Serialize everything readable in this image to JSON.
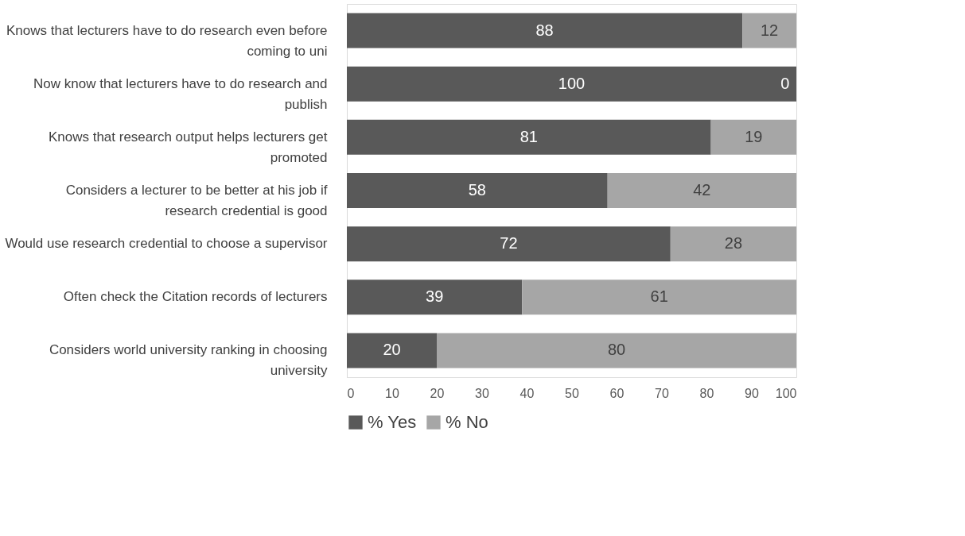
{
  "chart_data": {
    "type": "bar",
    "orientation": "horizontal",
    "stacked": true,
    "data_labels": true,
    "legend": "bottom",
    "grid": false,
    "categories": [
      "Knows that lecturers have to do research even before coming to uni",
      "Now know that lecturers have to do research and publish",
      "Knows that research output helps lecturers get promoted",
      "Considers a lecturer to be better at his job if research credential is good",
      "Would use research credential to choose a supervisor",
      "Often check the Citation records of lecturers",
      "Considers world university ranking in choosing university"
    ],
    "series": [
      {
        "name": "% Yes",
        "color": "#595959",
        "values": [
          88,
          100,
          81,
          58,
          72,
          39,
          20
        ]
      },
      {
        "name": "% No",
        "color": "#a6a6a6",
        "values": [
          12,
          0,
          19,
          42,
          28,
          61,
          80
        ]
      }
    ],
    "xlim": [
      0,
      100
    ],
    "xticks": [
      0,
      10,
      20,
      30,
      40,
      50,
      60,
      70,
      80,
      90,
      100
    ]
  }
}
